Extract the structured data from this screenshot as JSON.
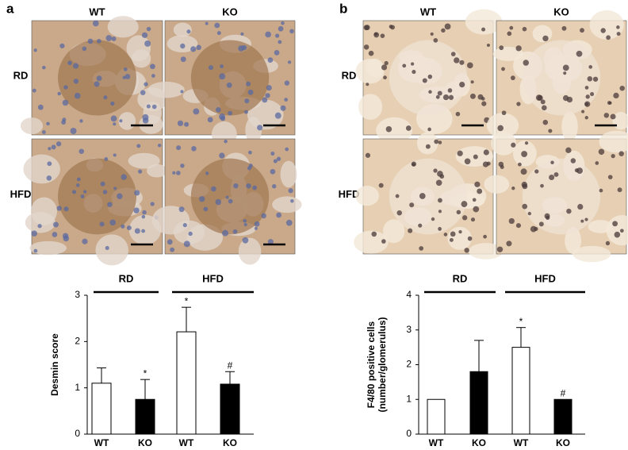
{
  "panels": [
    {
      "label": "a",
      "columns": [
        "WT",
        "KO"
      ],
      "rows": [
        "RD",
        "HFD"
      ]
    },
    {
      "label": "b",
      "columns": [
        "WT",
        "KO"
      ],
      "rows": [
        "RD",
        "HFD"
      ]
    }
  ],
  "chart_data": [
    {
      "type": "bar",
      "ylabel": [
        "Desmin score"
      ],
      "group_labels": [
        "RD",
        "HFD"
      ],
      "categories": [
        "WT",
        "KO",
        "WT",
        "KO"
      ],
      "values": [
        1.1,
        0.75,
        2.21,
        1.08
      ],
      "errors": [
        0.33,
        0.43,
        0.53,
        0.27
      ],
      "colors": [
        "#ffffff",
        "#000000",
        "#ffffff",
        "#000000"
      ],
      "annotations": [
        null,
        "*",
        "*",
        "#"
      ],
      "ylim": [
        0,
        3
      ],
      "yticks": [
        0,
        1,
        2,
        3
      ]
    },
    {
      "type": "bar",
      "ylabel": [
        "F4/80 positive cells",
        "(number/glomerulus)"
      ],
      "group_labels": [
        "RD",
        "HFD"
      ],
      "categories": [
        "WT",
        "KO",
        "WT",
        "KO"
      ],
      "values": [
        1.0,
        1.8,
        2.5,
        1.0
      ],
      "errors": [
        null,
        0.9,
        0.57,
        null
      ],
      "colors": [
        "#ffffff",
        "#000000",
        "#ffffff",
        "#000000"
      ],
      "annotations": [
        null,
        null,
        "*",
        "#"
      ],
      "ylim": [
        0,
        4
      ],
      "yticks": [
        0,
        1,
        2,
        3,
        4
      ]
    }
  ]
}
